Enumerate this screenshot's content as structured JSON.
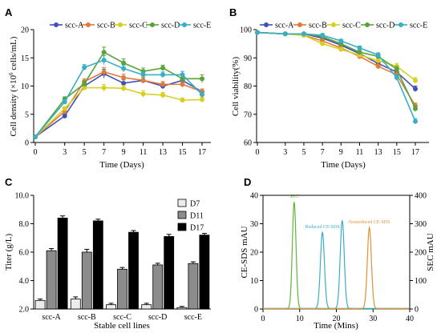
{
  "panels": {
    "a": {
      "letter": "A",
      "ylabel_exp": "6",
      "ylabel_unit": " cells/mL)"
    },
    "b": {
      "letter": "B"
    },
    "c": {
      "letter": "C"
    },
    "d": {
      "letter": "D"
    }
  },
  "colors": {
    "scc-A": "#3f51b5",
    "scc-B": "#e07b39",
    "scc-C": "#d9cf1f",
    "scc-D": "#5aa33a",
    "scc-E": "#3aaec2",
    "D7": "#ececec",
    "D11": "#8c8c8c",
    "D17": "#000000",
    "SEC": "#5db53a",
    "Reduced CE-SDS": "#3aaec2",
    "Nonreduced CE-SDS": "#e0913a"
  },
  "chart_data": [
    {
      "type": "line",
      "xlabel": "Time (Days)",
      "ylabel": "Cell density (×10⁶ cells/mL)",
      "x": [
        0,
        3,
        5,
        7,
        9,
        11,
        13,
        15,
        17
      ],
      "xticks": [
        0,
        3,
        5,
        7,
        9,
        11,
        13,
        15,
        17
      ],
      "ylim": [
        0,
        20
      ],
      "yticks": [
        0,
        5,
        10,
        15,
        20
      ],
      "legend": "top",
      "series": [
        {
          "name": "scc-A",
          "values": [
            1.0,
            4.7,
            10.0,
            12.2,
            10.5,
            11.0,
            10.0,
            11.0,
            9.0
          ],
          "err": [
            0.2,
            0.3,
            0.5,
            0.8,
            0.6,
            0.5,
            0.5,
            0.5,
            0.5
          ]
        },
        {
          "name": "scc-B",
          "values": [
            1.0,
            5.5,
            10.8,
            12.5,
            11.5,
            11.0,
            10.3,
            10.3,
            9.0
          ],
          "err": [
            0.2,
            0.3,
            0.5,
            0.8,
            0.6,
            0.5,
            0.5,
            0.5,
            0.5
          ]
        },
        {
          "name": "scc-C",
          "values": [
            1.0,
            6.0,
            9.7,
            9.7,
            9.6,
            8.6,
            8.4,
            7.5,
            7.6
          ],
          "err": [
            0.2,
            0.3,
            0.5,
            0.6,
            0.5,
            0.6,
            0.5,
            0.4,
            0.4
          ]
        },
        {
          "name": "scc-D",
          "values": [
            1.0,
            7.7,
            10.4,
            16.0,
            14.1,
            12.6,
            13.2,
            11.3,
            11.3
          ],
          "err": [
            0.2,
            0.4,
            0.5,
            0.9,
            0.7,
            0.6,
            0.5,
            0.7,
            0.7
          ]
        },
        {
          "name": "scc-E",
          "values": [
            1.0,
            7.2,
            13.3,
            14.6,
            13.1,
            12.0,
            12.0,
            12.0,
            8.5
          ],
          "err": [
            0.2,
            0.4,
            0.5,
            0.8,
            0.6,
            0.6,
            0.5,
            0.6,
            0.5
          ]
        }
      ]
    },
    {
      "type": "line",
      "xlabel": "Time (Days)",
      "ylabel": "Cell viability(%)",
      "x": [
        0,
        3,
        5,
        7,
        9,
        11,
        13,
        15,
        17
      ],
      "xticks": [
        0,
        3,
        5,
        7,
        9,
        11,
        13,
        15,
        17
      ],
      "ylim": [
        60,
        100
      ],
      "yticks": [
        60,
        70,
        80,
        90,
        100
      ],
      "legend": "top",
      "series": [
        {
          "name": "scc-A",
          "values": [
            99.0,
            98.5,
            98.5,
            97.0,
            94.5,
            91.5,
            88.0,
            85.0,
            79.0
          ],
          "err": [
            0.3,
            0.4,
            0.4,
            0.6,
            0.6,
            0.7,
            0.8,
            1.0,
            1.0
          ]
        },
        {
          "name": "scc-B",
          "values": [
            99.0,
            98.5,
            98.0,
            96.0,
            93.5,
            90.5,
            87.0,
            84.0,
            73.0
          ],
          "err": [
            0.3,
            0.4,
            0.4,
            0.6,
            0.6,
            0.7,
            0.8,
            1.0,
            1.0
          ]
        },
        {
          "name": "scc-C",
          "values": [
            99.0,
            98.5,
            98.0,
            95.0,
            93.0,
            91.0,
            89.0,
            87.0,
            82.0
          ],
          "err": [
            0.3,
            0.4,
            0.4,
            0.6,
            0.6,
            0.7,
            0.8,
            1.0,
            1.0
          ]
        },
        {
          "name": "scc-D",
          "values": [
            99.0,
            98.5,
            98.5,
            97.5,
            95.0,
            92.0,
            90.5,
            86.0,
            72.0
          ],
          "err": [
            0.3,
            0.4,
            0.4,
            0.6,
            0.6,
            0.7,
            0.8,
            1.0,
            1.0
          ]
        },
        {
          "name": "scc-E",
          "values": [
            99.0,
            98.5,
            98.5,
            98.0,
            96.0,
            93.5,
            91.0,
            83.0,
            67.5
          ],
          "err": [
            0.3,
            0.4,
            0.4,
            0.6,
            0.6,
            0.7,
            0.8,
            1.0,
            1.0
          ]
        }
      ]
    },
    {
      "type": "bar",
      "xlabel": "Stable cell lines",
      "ylabel": "Titer (g/L)",
      "categories": [
        "scc-A",
        "scc-B",
        "scc-C",
        "scc-D",
        "scc-E"
      ],
      "ylim": [
        2.0,
        10.0
      ],
      "yticks": [
        "2.0",
        "4.0",
        "6.0",
        "8.0",
        "10.0"
      ],
      "legend": "top-right",
      "series": [
        {
          "name": "D7",
          "values": [
            2.6,
            2.7,
            2.3,
            2.3,
            2.1
          ],
          "err": [
            0.1,
            0.15,
            0.1,
            0.1,
            0.08
          ]
        },
        {
          "name": "D11",
          "values": [
            6.1,
            6.0,
            4.8,
            5.1,
            5.2
          ],
          "err": [
            0.15,
            0.2,
            0.12,
            0.12,
            0.12
          ]
        },
        {
          "name": "D17",
          "values": [
            8.4,
            8.2,
            7.4,
            7.1,
            7.2
          ],
          "err": [
            0.15,
            0.12,
            0.12,
            0.15,
            0.12
          ]
        }
      ]
    },
    {
      "type": "line",
      "xlabel": "Time (Mins)",
      "ylabel": "CE-SDS mAU",
      "y2label": "SEC mAU",
      "xlim": [
        0,
        40
      ],
      "xticks": [
        0,
        10,
        20,
        30,
        40
      ],
      "ylim": [
        0,
        40
      ],
      "yticks": [
        0,
        10,
        20,
        30,
        40
      ],
      "y2lim": [
        0,
        400
      ],
      "y2ticks": [
        0,
        100,
        200,
        300,
        400
      ],
      "peaks": [
        {
          "name": "SEC",
          "center": 8.5,
          "height": 37.5,
          "width": 0.5,
          "label": "SEC",
          "axis": "right-scaled"
        },
        {
          "name": "Reduced CE-SDS",
          "center": 16.2,
          "height": 26.8,
          "width": 0.55,
          "label": "Reduced CE-SDS",
          "axis": "left"
        },
        {
          "name": "Reduced CE-SDS 2",
          "center": 21.6,
          "height": 31.0,
          "width": 0.55,
          "label": "",
          "axis": "left"
        },
        {
          "name": "Nonreduced CE-SDS",
          "center": 29.0,
          "height": 28.5,
          "width": 0.55,
          "label": "Nonreduced CE-SDS",
          "axis": "left"
        }
      ]
    }
  ]
}
